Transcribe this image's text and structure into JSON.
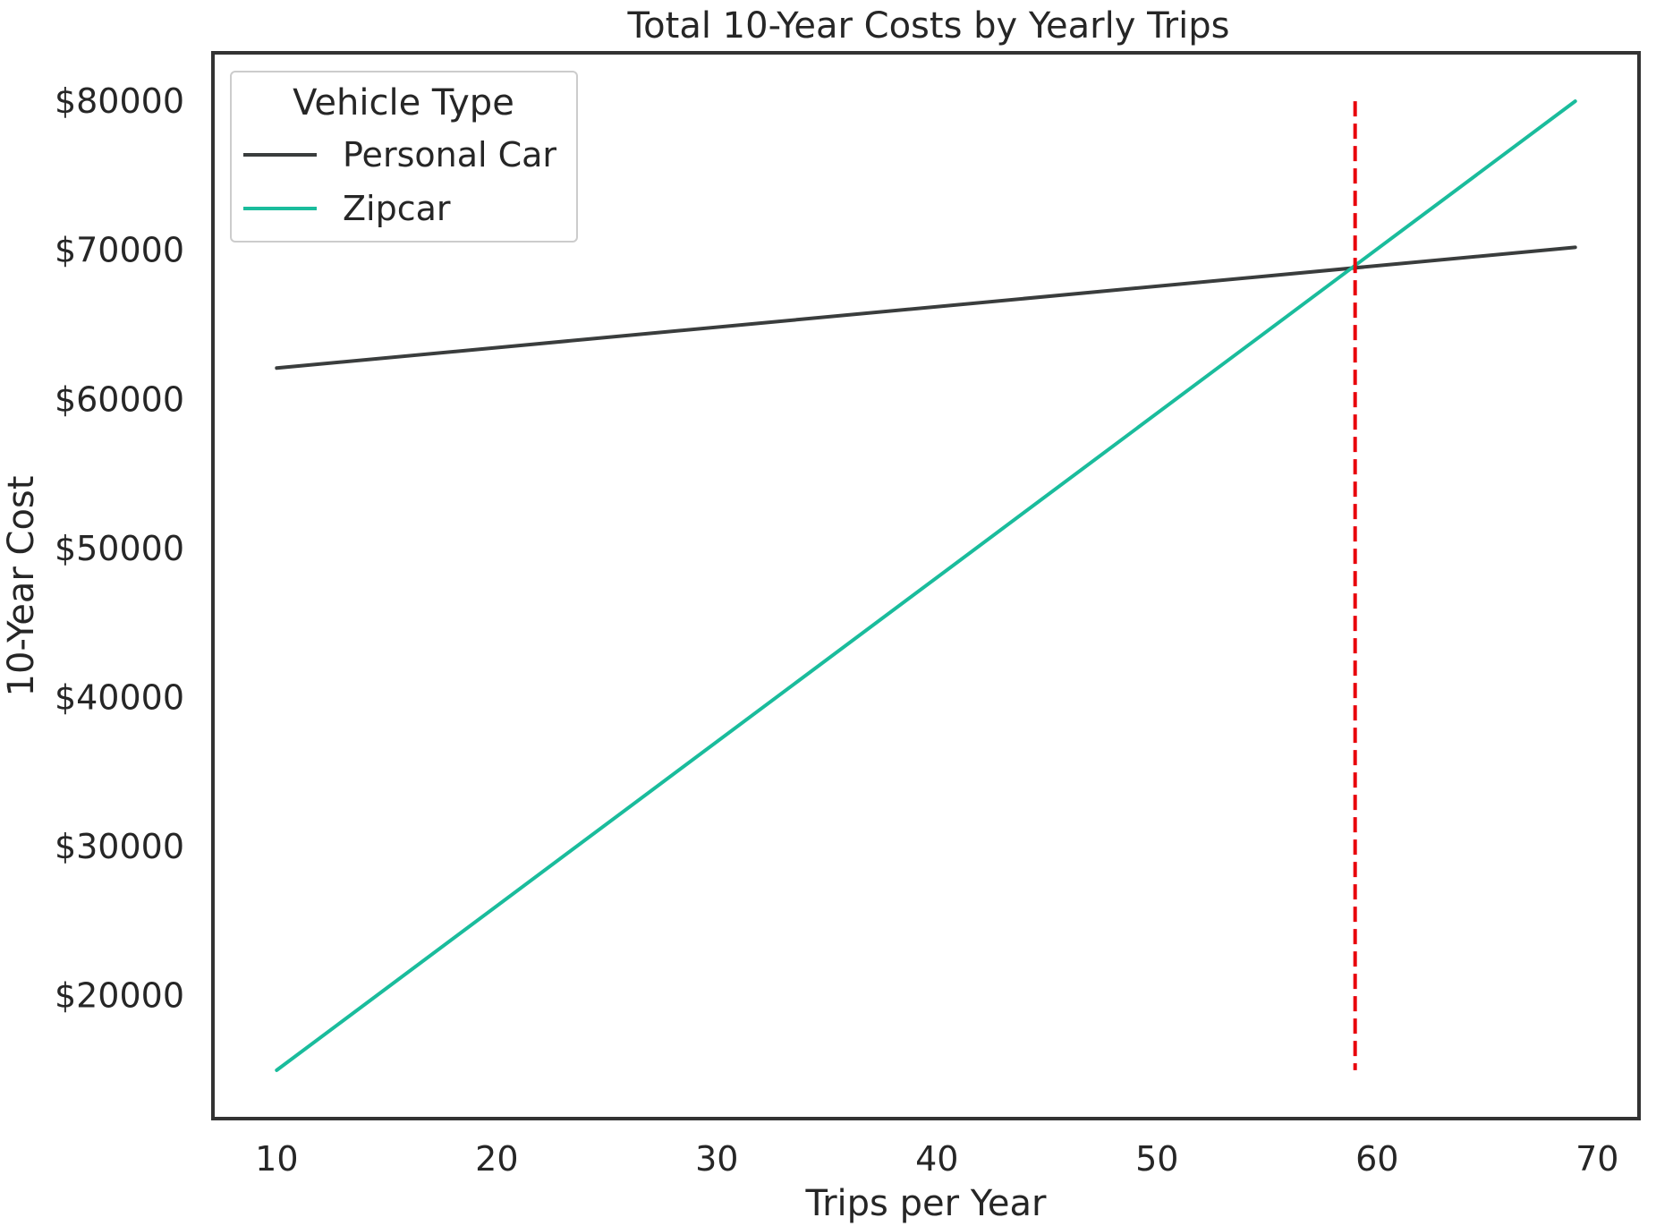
{
  "chart_data": {
    "type": "line",
    "title": "Total 10-Year Costs by Yearly Trips",
    "xlabel": "Trips per Year",
    "ylabel": "10-Year Cost",
    "xlim": [
      7.1,
      71.9
    ],
    "ylim": [
      11750,
      83250
    ],
    "x_ticks": [
      10,
      20,
      30,
      40,
      50,
      60,
      70
    ],
    "y_ticks": [
      20000,
      30000,
      40000,
      50000,
      60000,
      70000,
      80000
    ],
    "y_tick_labels": [
      "$20000",
      "$30000",
      "$40000",
      "$50000",
      "$60000",
      "$70000",
      "$80000"
    ],
    "grid": false,
    "legend": {
      "title": "Vehicle Type",
      "placement": "top-left"
    },
    "series": [
      {
        "name": "Personal Car",
        "color": "#3a3d3d",
        "x": [
          10,
          69
        ],
        "y": [
          62100,
          70200
        ]
      },
      {
        "name": "Zipcar",
        "color": "#1abc9c",
        "x": [
          10,
          69
        ],
        "y": [
          15000,
          80000
        ]
      }
    ],
    "annotations": [
      {
        "type": "vline",
        "x": 59,
        "y_range": [
          15000,
          80000
        ],
        "color": "#e8000b",
        "style": "dashed"
      }
    ]
  }
}
